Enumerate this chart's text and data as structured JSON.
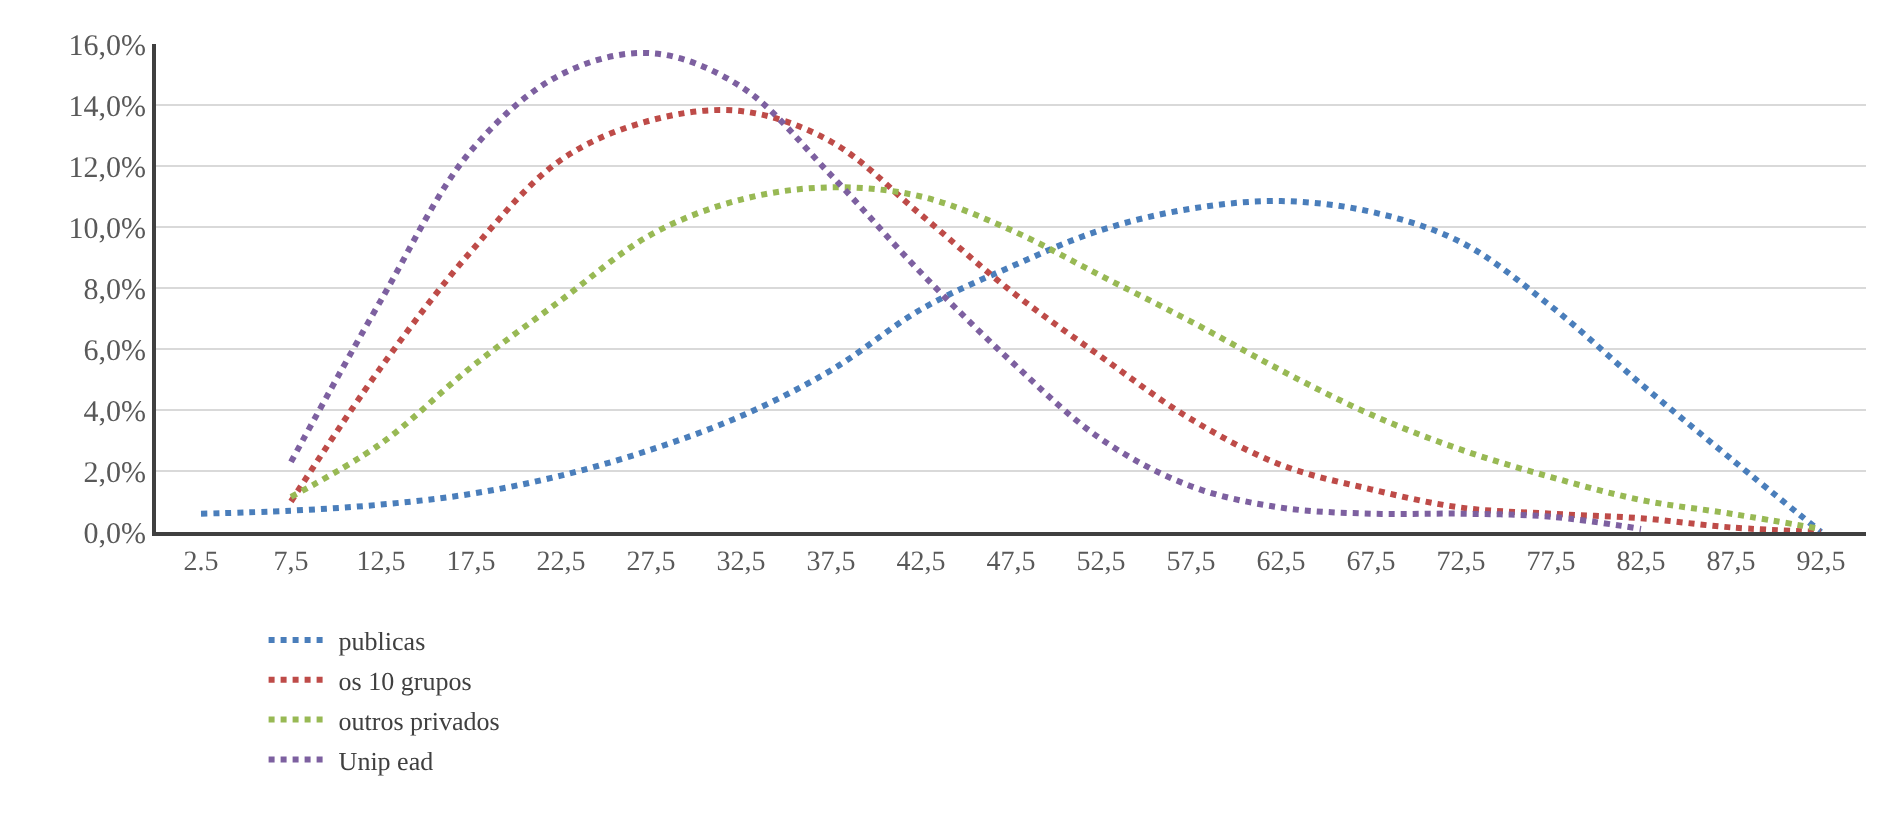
{
  "chart_data": {
    "type": "line",
    "categories": [
      "2.5",
      "7,5",
      "12,5",
      "17,5",
      "22,5",
      "27,5",
      "32,5",
      "37,5",
      "42,5",
      "47,5",
      "52,5",
      "57,5",
      "62,5",
      "67,5",
      "72,5",
      "77,5",
      "82,5",
      "87,5",
      "92,5"
    ],
    "series": [
      {
        "name": "publicas",
        "color": "#4a7ebb",
        "values": [
          0.6,
          0.7,
          0.9,
          1.25,
          1.85,
          2.7,
          3.8,
          5.3,
          7.3,
          8.7,
          9.9,
          10.6,
          10.85,
          10.5,
          9.5,
          7.4,
          4.85,
          2.4,
          0.0
        ]
      },
      {
        "name": "os 10 grupos",
        "color": "#be4b48",
        "values": [
          null,
          1.0,
          5.4,
          9.2,
          12.2,
          13.5,
          13.8,
          12.8,
          10.4,
          7.9,
          5.75,
          3.7,
          2.2,
          1.4,
          0.8,
          0.6,
          0.45,
          0.15,
          0.0
        ]
      },
      {
        "name": "outros privados",
        "color": "#98b954",
        "values": [
          null,
          1.15,
          2.9,
          5.4,
          7.6,
          9.75,
          10.9,
          11.3,
          11.0,
          9.9,
          8.4,
          6.9,
          5.3,
          3.85,
          2.7,
          1.8,
          1.05,
          0.6,
          0.1
        ]
      },
      {
        "name": "Unip ead",
        "color": "#7d60a0",
        "values": [
          null,
          2.3,
          7.6,
          12.5,
          15.0,
          15.7,
          14.6,
          11.7,
          8.5,
          5.6,
          3.05,
          1.5,
          0.8,
          0.6,
          0.6,
          0.5,
          0.1,
          null,
          null
        ]
      }
    ],
    "ylim": [
      0,
      16
    ],
    "yticks": [
      {
        "value": 0,
        "label": "0,0%"
      },
      {
        "value": 2,
        "label": "2,0%"
      },
      {
        "value": 4,
        "label": "4,0%"
      },
      {
        "value": 6,
        "label": "6,0%"
      },
      {
        "value": 8,
        "label": "8,0%"
      },
      {
        "value": 10,
        "label": "10,0%"
      },
      {
        "value": 12,
        "label": "12,0%"
      },
      {
        "value": 14,
        "label": "14,0%"
      },
      {
        "value": 16,
        "label": "16,0%"
      }
    ],
    "grid": "y",
    "legend": "bottom",
    "marker": "none",
    "line_style": "dotted"
  }
}
